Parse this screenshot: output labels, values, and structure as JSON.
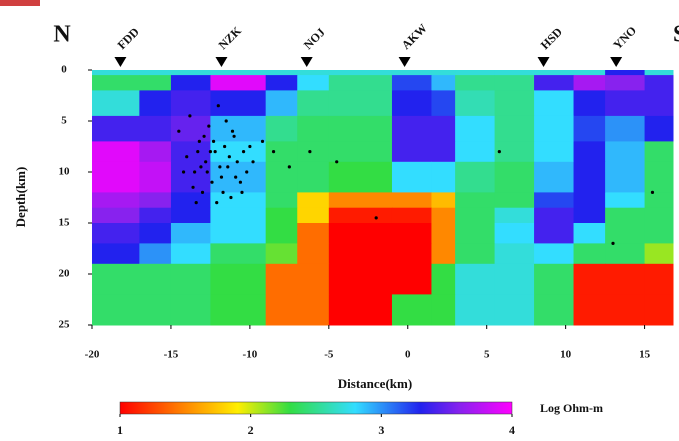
{
  "chart_data": {
    "type": "heatmap",
    "x_edges": [
      -20,
      -17,
      -15,
      -12.5,
      -9,
      -7,
      -5,
      -1,
      1.5,
      3,
      5.5,
      8,
      10.5,
      12.5,
      15,
      16.8
    ],
    "y_edges": [
      0,
      0.5,
      2,
      4.5,
      7,
      9,
      12,
      13.5,
      15,
      17,
      19,
      22,
      25
    ],
    "z": [
      [
        2.7,
        2.7,
        2.7,
        2.7,
        2.7,
        2.7,
        2.7,
        2.7,
        2.7,
        2.7,
        2.7,
        2.7,
        2.7,
        3.3,
        2.7
      ],
      [
        2.4,
        2.4,
        3.3,
        3.9,
        3.3,
        2.8,
        2.5,
        3.2,
        2.9,
        2.5,
        2.5,
        3.4,
        3.7,
        3.6,
        3.4
      ],
      [
        2.7,
        3.3,
        3.4,
        3.3,
        2.9,
        2.5,
        2.5,
        3.3,
        3.2,
        2.6,
        2.5,
        2.8,
        3.3,
        3.4,
        3.4
      ],
      [
        3.4,
        3.4,
        3.5,
        2.9,
        2.5,
        2.4,
        2.4,
        3.4,
        3.4,
        2.8,
        2.5,
        2.8,
        3.2,
        3.0,
        3.3
      ],
      [
        3.9,
        3.7,
        3.4,
        2.8,
        2.4,
        2.4,
        2.4,
        3.4,
        3.4,
        2.8,
        2.5,
        2.8,
        3.3,
        2.9,
        2.4
      ],
      [
        3.9,
        3.8,
        3.4,
        2.9,
        2.4,
        2.4,
        2.3,
        2.8,
        2.8,
        2.5,
        2.4,
        2.9,
        3.3,
        2.9,
        2.4
      ],
      [
        3.7,
        3.6,
        3.3,
        2.8,
        2.4,
        1.8,
        1.5,
        1.5,
        1.7,
        2.4,
        2.4,
        3.2,
        3.3,
        2.8,
        2.4
      ],
      [
        3.6,
        3.4,
        3.3,
        2.8,
        2.3,
        1.8,
        1.1,
        1.1,
        1.5,
        2.4,
        2.7,
        3.4,
        3.3,
        2.4,
        2.4
      ],
      [
        3.4,
        3.3,
        2.9,
        2.8,
        2.3,
        1.4,
        1.0,
        1.0,
        1.5,
        2.4,
        2.8,
        3.4,
        2.8,
        2.4,
        2.4
      ],
      [
        3.3,
        3.0,
        2.8,
        2.4,
        2.2,
        1.4,
        1.0,
        1.0,
        1.5,
        2.4,
        2.7,
        2.8,
        2.4,
        2.4,
        2.1
      ],
      [
        2.4,
        2.4,
        2.4,
        2.3,
        1.4,
        1.4,
        1.0,
        1.0,
        2.3,
        2.7,
        2.7,
        2.4,
        1.1,
        1.1,
        1.1
      ],
      [
        2.4,
        2.4,
        2.4,
        2.3,
        1.4,
        1.4,
        1.0,
        2.3,
        2.3,
        2.7,
        2.7,
        2.4,
        1.1,
        1.1,
        1.1
      ]
    ],
    "colorscale": [
      {
        "value": 1,
        "color": "#ff0000"
      },
      {
        "value": 1.5,
        "color": "#ff8800"
      },
      {
        "value": 1.9,
        "color": "#ffee00"
      },
      {
        "value": 2.3,
        "color": "#33dd44"
      },
      {
        "value": 2.8,
        "color": "#33ddff"
      },
      {
        "value": 3.3,
        "color": "#2222ee"
      },
      {
        "value": 3.6,
        "color": "#8822ee"
      },
      {
        "value": 4,
        "color": "#ff00ff"
      }
    ],
    "clim": [
      1,
      4
    ],
    "colorbar_ticks": [
      1,
      2,
      3,
      4
    ],
    "colorbar_label": "Log Ohm-m",
    "xlim": [
      -20,
      16.8
    ],
    "xticks": [
      -20,
      -15,
      -10,
      -5,
      0,
      5,
      10,
      15
    ],
    "ylim": [
      0,
      25
    ],
    "yticks": [
      0,
      5,
      10,
      15,
      20,
      25
    ],
    "xlabel": "Distance(km)",
    "ylabel": "Depth(km)",
    "left_label": "N",
    "right_label": "S",
    "stations": [
      {
        "name": "FDD",
        "x": -18.2
      },
      {
        "name": "NZK",
        "x": -11.8
      },
      {
        "name": "NOJ",
        "x": -6.4
      },
      {
        "name": "AKW",
        "x": -0.2
      },
      {
        "name": "HSD",
        "x": 8.6
      },
      {
        "name": "YNO",
        "x": 13.2
      }
    ],
    "quakes": {
      "x": [
        -14.5,
        -14,
        -13.8,
        -13.5,
        -13.2,
        -13,
        -12.8,
        -12.6,
        -12.4,
        -12.2,
        -12,
        -11.8,
        -11.6,
        -11.4,
        -11.2,
        -11,
        -10.8,
        -10.6,
        -10.4,
        -10.2,
        -10,
        -13.6,
        -12.9,
        -12.1,
        -11.5,
        -10.9,
        -13.1,
        -12.5,
        -11.7,
        -11.1,
        -14.2,
        -13.4,
        -12.3,
        -11.3,
        -10.5,
        -9.8,
        -9.2,
        -8.5,
        -7.5,
        -6.2,
        -4.5,
        -2,
        5.8,
        13,
        15.5,
        -12.7,
        -11.9,
        -13.3
      ],
      "depth": [
        6,
        8.5,
        4.5,
        10,
        7,
        12,
        9,
        5.5,
        11,
        8,
        3.5,
        10.5,
        7.5,
        9.5,
        12.5,
        6.5,
        9,
        11,
        8,
        10,
        7.5,
        11.5,
        6.5,
        13,
        5,
        10.5,
        9.5,
        8,
        12,
        6,
        10,
        13,
        7,
        8.5,
        12,
        9,
        7,
        8,
        9.5,
        8,
        9,
        14.5,
        8,
        17,
        12,
        10,
        9.5,
        8
      ],
      "color": "#000000"
    }
  }
}
